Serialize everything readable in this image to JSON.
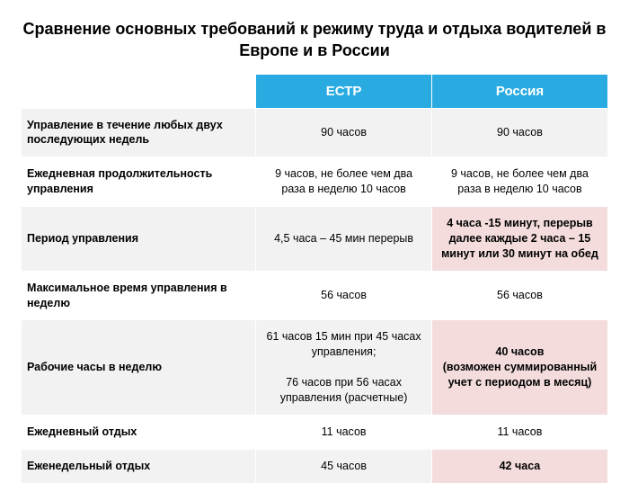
{
  "title": "Сравнение основных требований к режиму труда и отдыха водителей в Европе и в России",
  "colors": {
    "header_bg": "#29abe2",
    "row_even_bg": "#ffffff",
    "row_odd_bg": "#f2f2f2",
    "highlight_bg": "#f4dcdc",
    "text": "#000000",
    "header_text": "#ffffff"
  },
  "columns": [
    {
      "key": "ectr",
      "label": "ЕСТР"
    },
    {
      "key": "russia",
      "label": "Россия"
    }
  ],
  "rows": [
    {
      "label": "Управление в течение любых двух последующих недель",
      "ectr": {
        "text": "90 часов",
        "highlight": false
      },
      "russia": {
        "text": "90 часов",
        "highlight": false
      }
    },
    {
      "label": "Ежедневная продолжительность управления",
      "ectr": {
        "text": "9 часов, не более чем два раза в неделю 10 часов",
        "highlight": false
      },
      "russia": {
        "text": "9 часов, не более чем два раза в неделю 10 часов",
        "highlight": false
      }
    },
    {
      "label": "Период управления",
      "ectr": {
        "text": "4,5 часа – 45 мин перерыв",
        "highlight": false
      },
      "russia": {
        "text": "4 часа -15 минут, перерыв далее каждые 2 часа – 15 минут или 30 минут на обед",
        "highlight": true
      }
    },
    {
      "label": "Максимальное время управления в неделю",
      "ectr": {
        "text": "56 часов",
        "highlight": false
      },
      "russia": {
        "text": "56 часов",
        "highlight": false
      }
    },
    {
      "label": "Рабочие часы в неделю",
      "ectr": {
        "text": "61 часов 15 мин при 45 часах управления;\n\n76 часов при 56 часах управления (расчетные)",
        "highlight": false
      },
      "russia": {
        "text": "40 часов\n(возможен суммированный учет с периодом в месяц)",
        "highlight": true
      }
    },
    {
      "label": "Ежедневный отдых",
      "ectr": {
        "text": "11 часов",
        "highlight": false
      },
      "russia": {
        "text": "11 часов",
        "highlight": false
      }
    },
    {
      "label": "Еженедельный отдых",
      "ectr": {
        "text": "45 часов",
        "highlight": false
      },
      "russia": {
        "text": "42 часа",
        "highlight": true
      }
    }
  ]
}
